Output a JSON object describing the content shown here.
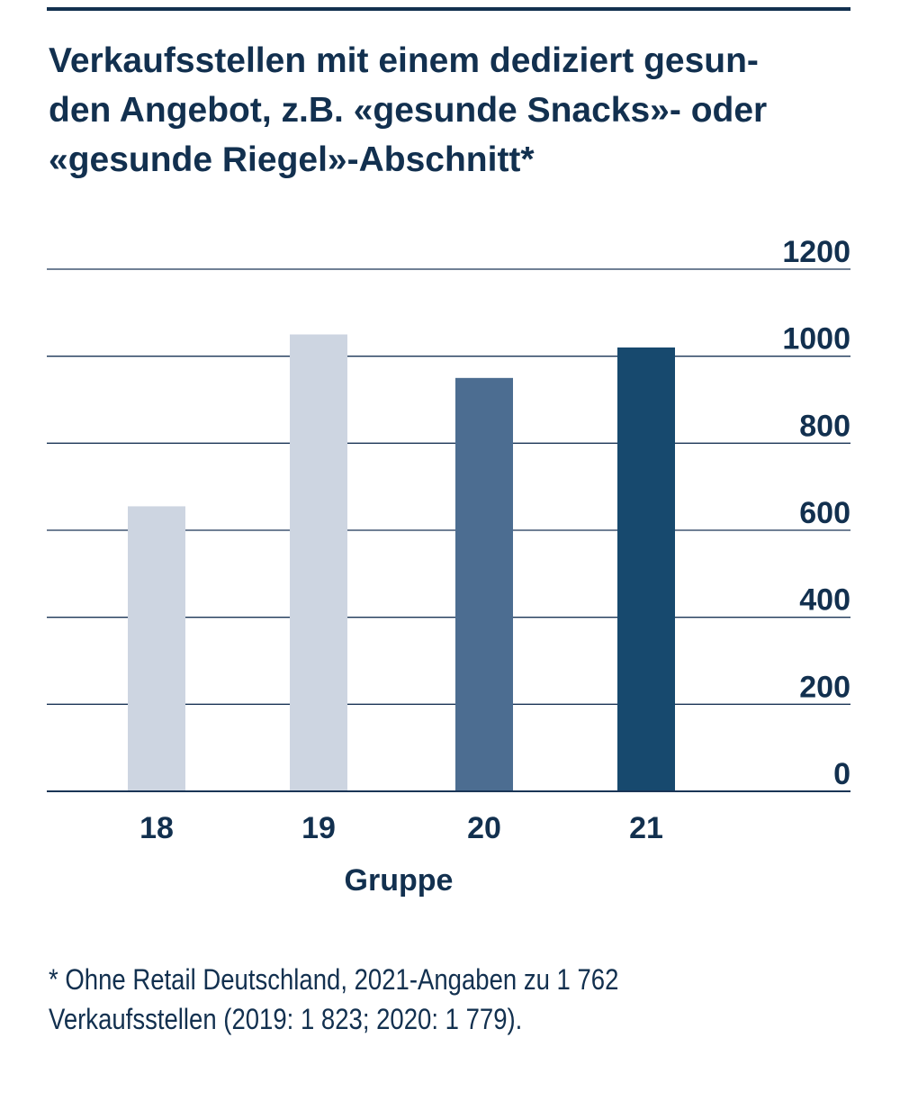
{
  "title_lines": [
    "Verkaufsstellen mit einem dediziert gesun-",
    "den Angebot, z.B. «gesunde Snacks»- oder",
    "«gesunde Riegel»-Abschnitt*"
  ],
  "chart_data": {
    "type": "bar",
    "categories": [
      "18",
      "19",
      "20",
      "21"
    ],
    "values": [
      655,
      1050,
      950,
      1020
    ],
    "bar_colors": [
      "#cdd5e1",
      "#cdd5e1",
      "#4c6d91",
      "#17496e"
    ],
    "xlabel": "Gruppe",
    "ylabel": "",
    "ylim": [
      0,
      1200
    ],
    "yticks": [
      0,
      200,
      400,
      600,
      800,
      1000,
      1200
    ],
    "grid": true,
    "y_axis_side": "right"
  },
  "footnote_lines": [
    "* Ohne Retail Deutschland, 2021-Angaben zu 1 762",
    "Verkaufsstellen (2019: 1 823; 2020: 1 779)."
  ],
  "colors": {
    "text": "#12304f",
    "grid": "#1a3556"
  }
}
